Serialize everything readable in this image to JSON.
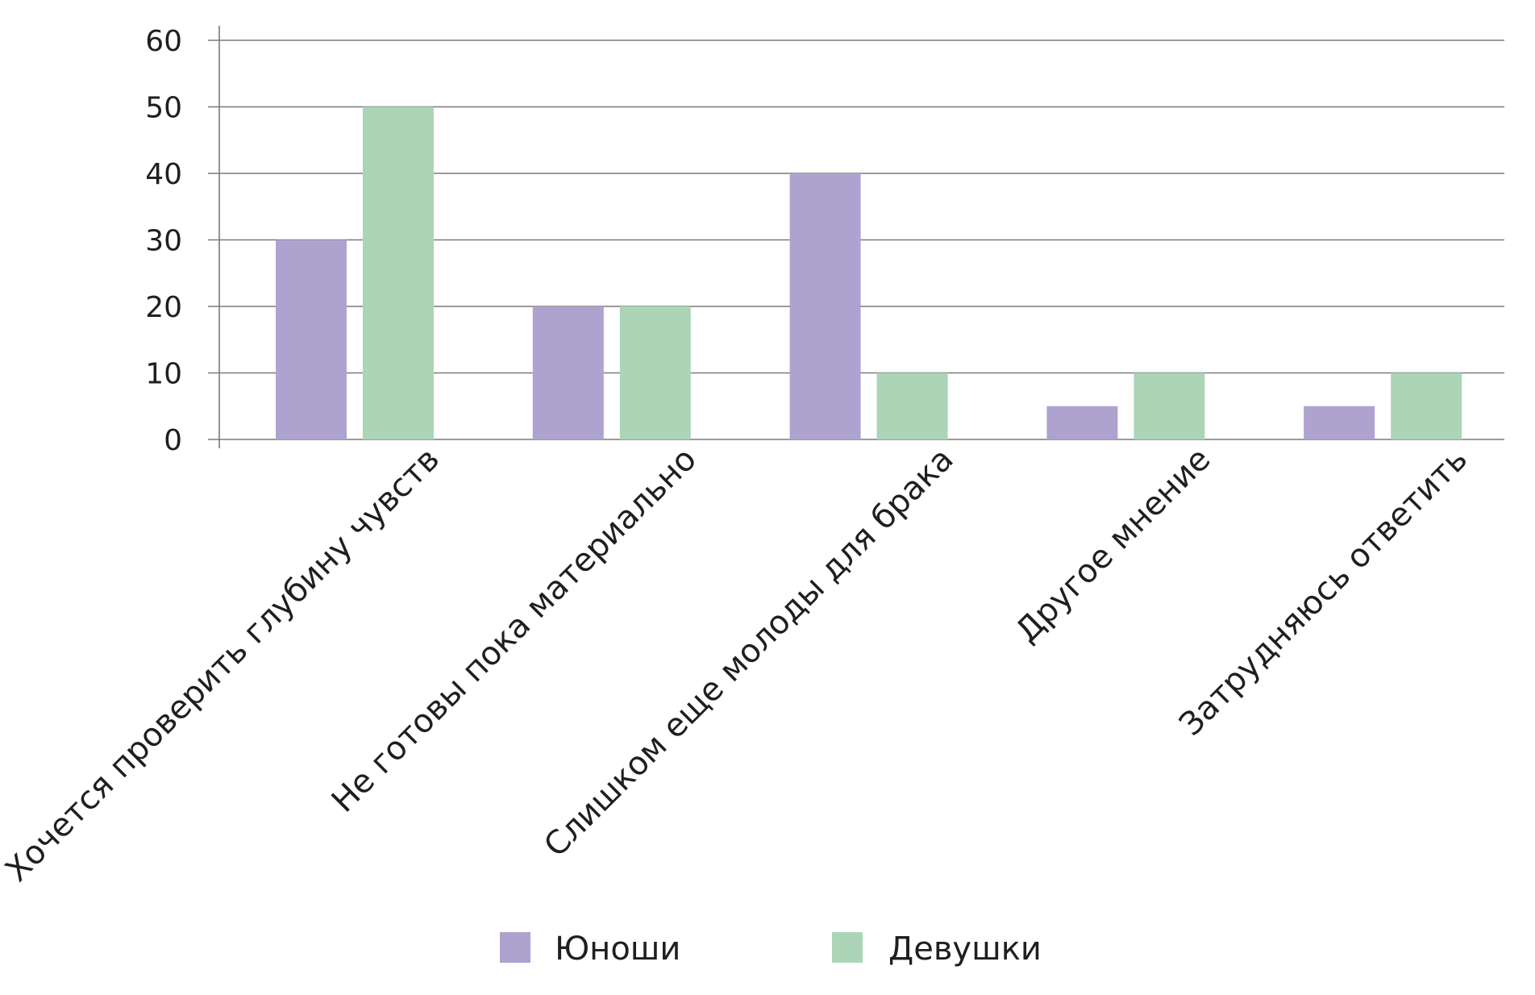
{
  "chart_data": {
    "type": "bar",
    "categories": [
      "Хочется проверить глубину чувств",
      "Не готовы пока материально",
      "Слишком еще молоды для брака",
      "Другое мнение",
      "Затрудняюсь ответить"
    ],
    "series": [
      {
        "name": "Юноши",
        "values": [
          30,
          20,
          40,
          5,
          5
        ],
        "color": "#aea3cf"
      },
      {
        "name": "Девушки",
        "values": [
          50,
          20,
          10,
          10,
          10
        ],
        "color": "#acd5b8"
      }
    ],
    "y_ticks": [
      "0",
      "10",
      "20",
      "30",
      "40",
      "50",
      "60"
    ],
    "ylim": [
      0,
      60
    ],
    "grid": true,
    "legend_position": "bottom-center",
    "title": "",
    "xlabel": "",
    "ylabel": ""
  }
}
